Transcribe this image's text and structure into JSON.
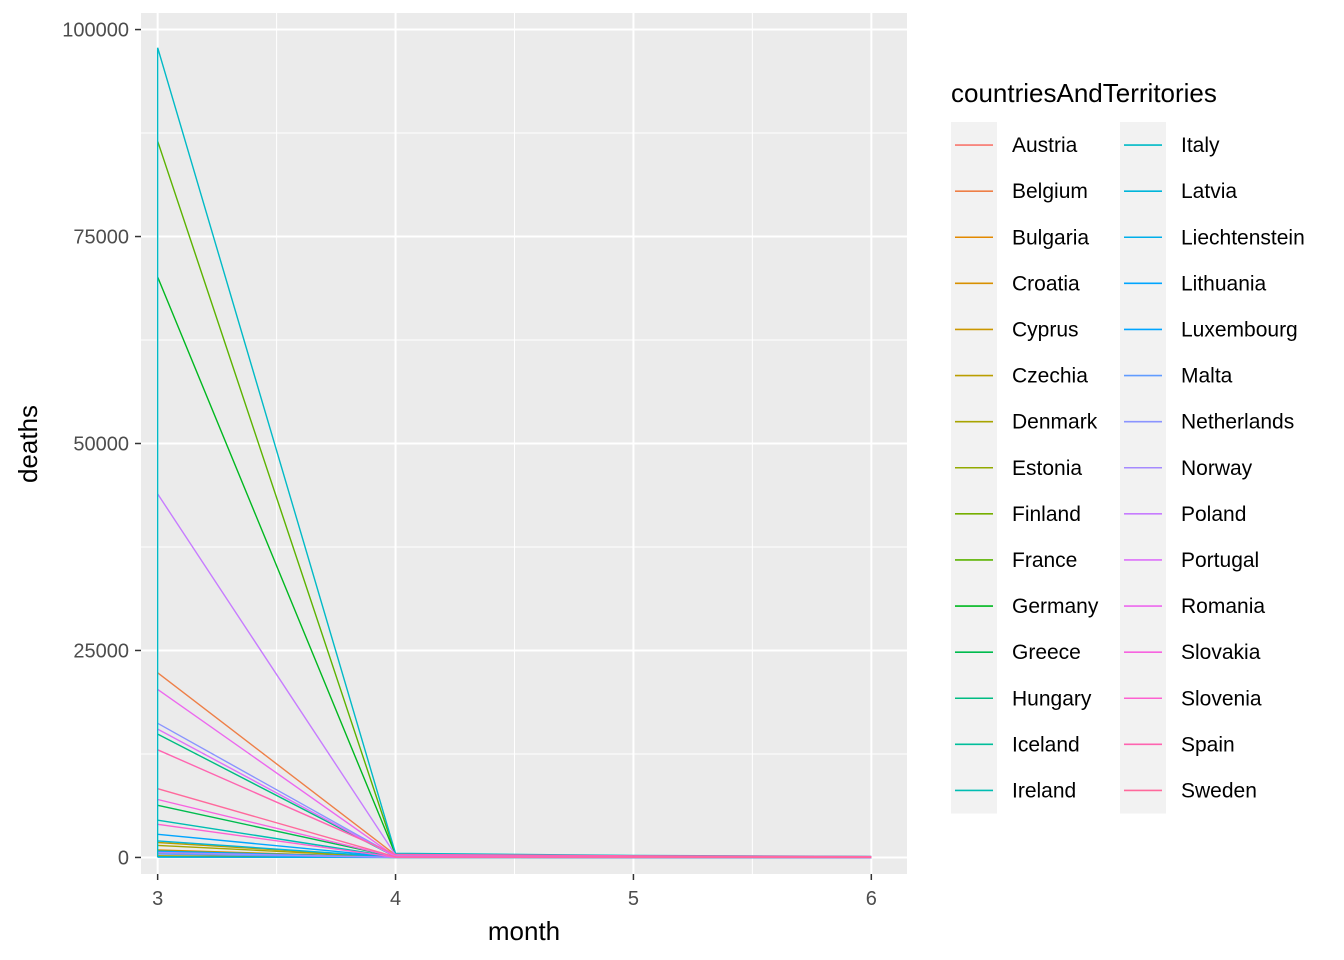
{
  "chart_data": {
    "type": "line",
    "xlabel": "month",
    "ylabel": "deaths",
    "xlim": [
      2.93,
      6.15
    ],
    "ylim": [
      -2000,
      102000
    ],
    "x_ticks": [
      3,
      4,
      5,
      6
    ],
    "y_ticks": [
      0,
      25000,
      50000,
      75000,
      100000
    ],
    "grid": true,
    "legend": {
      "title": "countriesAndTerritories",
      "position": "right",
      "columns": 2
    },
    "series": [
      {
        "name": "Austria",
        "color": "#F8766D",
        "x": [
          3,
          4,
          5,
          6
        ],
        "y": [
          650,
          30,
          10,
          5
        ]
      },
      {
        "name": "Belgium",
        "color": "#EE7F47",
        "x": [
          3,
          4,
          5,
          6
        ],
        "y": [
          22300,
          300,
          120,
          60
        ]
      },
      {
        "name": "Bulgaria",
        "color": "#E38900",
        "x": [
          3,
          4,
          5,
          6
        ],
        "y": [
          900,
          30,
          10,
          5
        ]
      },
      {
        "name": "Croatia",
        "color": "#D89000",
        "x": [
          3,
          4,
          5,
          6
        ],
        "y": [
          550,
          20,
          5,
          5
        ]
      },
      {
        "name": "Cyprus",
        "color": "#CB9700",
        "x": [
          3,
          4,
          5,
          6
        ],
        "y": [
          200,
          10,
          2,
          1
        ]
      },
      {
        "name": "Czechia",
        "color": "#BA9E00",
        "x": [
          3,
          4,
          5,
          6
        ],
        "y": [
          1800,
          40,
          15,
          10
        ]
      },
      {
        "name": "Denmark",
        "color": "#A8A400",
        "x": [
          3,
          4,
          5,
          6
        ],
        "y": [
          1450,
          30,
          10,
          5
        ]
      },
      {
        "name": "Estonia",
        "color": "#93AA00",
        "x": [
          3,
          4,
          5,
          6
        ],
        "y": [
          150,
          5,
          2,
          1
        ]
      },
      {
        "name": "Finland",
        "color": "#76AF00",
        "x": [
          3,
          4,
          5,
          6
        ],
        "y": [
          800,
          20,
          5,
          3
        ]
      },
      {
        "name": "France",
        "color": "#5BB300",
        "x": [
          3,
          4,
          5,
          6
        ],
        "y": [
          86500,
          400,
          180,
          90
        ]
      },
      {
        "name": "Germany",
        "color": "#00B81F",
        "x": [
          3,
          4,
          5,
          6
        ],
        "y": [
          70100,
          350,
          150,
          70
        ]
      },
      {
        "name": "Greece",
        "color": "#00BB4E",
        "x": [
          3,
          4,
          5,
          6
        ],
        "y": [
          6300,
          50,
          20,
          10
        ]
      },
      {
        "name": "Hungary",
        "color": "#00BC83",
        "x": [
          3,
          4,
          5,
          6
        ],
        "y": [
          14900,
          80,
          30,
          15
        ]
      },
      {
        "name": "Iceland",
        "color": "#00BE9B",
        "x": [
          3,
          4,
          5,
          6
        ],
        "y": [
          80,
          2,
          1,
          0
        ]
      },
      {
        "name": "Ireland",
        "color": "#00BDB2",
        "x": [
          3,
          4,
          5,
          6
        ],
        "y": [
          4500,
          40,
          15,
          8
        ]
      },
      {
        "name": "Italy",
        "color": "#00BAC6",
        "x": [
          3,
          4,
          5,
          6
        ],
        "y": [
          97800,
          500,
          250,
          120
        ]
      },
      {
        "name": "Latvia",
        "color": "#00B5DA",
        "x": [
          3,
          4,
          5,
          6
        ],
        "y": [
          2000,
          20,
          8,
          4
        ]
      },
      {
        "name": "Liechtenstein",
        "color": "#00AFEA",
        "x": [
          3,
          4,
          5,
          6
        ],
        "y": [
          30,
          1,
          0,
          0
        ]
      },
      {
        "name": "Lithuania",
        "color": "#00A5FF",
        "x": [
          3,
          4,
          5,
          6
        ],
        "y": [
          2800,
          40,
          15,
          8
        ]
      },
      {
        "name": "Luxembourg",
        "color": "#00A5FF",
        "x": [
          3,
          4,
          5,
          6
        ],
        "y": [
          750,
          20,
          8,
          4
        ]
      },
      {
        "name": "Malta",
        "color": "#619CFF",
        "x": [
          3,
          4,
          5,
          6
        ],
        "y": [
          400,
          5,
          2,
          1
        ]
      },
      {
        "name": "Netherlands",
        "color": "#8A94FF",
        "x": [
          3,
          4,
          5,
          6
        ],
        "y": [
          16200,
          150,
          60,
          30
        ]
      },
      {
        "name": "Norway",
        "color": "#A58AFF",
        "x": [
          3,
          4,
          5,
          6
        ],
        "y": [
          600,
          10,
          4,
          2
        ]
      },
      {
        "name": "Poland",
        "color": "#C77CFF",
        "x": [
          3,
          4,
          5,
          6
        ],
        "y": [
          43900,
          300,
          120,
          60
        ]
      },
      {
        "name": "Portugal",
        "color": "#DD71FA",
        "x": [
          3,
          4,
          5,
          6
        ],
        "y": [
          15500,
          80,
          30,
          15
        ]
      },
      {
        "name": "Romania",
        "color": "#EC68EE",
        "x": [
          3,
          4,
          5,
          6
        ],
        "y": [
          20300,
          100,
          40,
          20
        ]
      },
      {
        "name": "Slovakia",
        "color": "#F763E0",
        "x": [
          3,
          4,
          5,
          6
        ],
        "y": [
          7000,
          40,
          15,
          8
        ]
      },
      {
        "name": "Slovenia",
        "color": "#FD61D1",
        "x": [
          3,
          4,
          5,
          6
        ],
        "y": [
          4000,
          20,
          8,
          4
        ]
      },
      {
        "name": "Spain",
        "color": "#FF64B0",
        "x": [
          3,
          4,
          5,
          6
        ],
        "y": [
          13000,
          350,
          200,
          100
        ]
      },
      {
        "name": "Sweden",
        "color": "#FF699C",
        "x": [
          3,
          4,
          5,
          6
        ],
        "y": [
          8300,
          60,
          25,
          12
        ]
      }
    ]
  }
}
